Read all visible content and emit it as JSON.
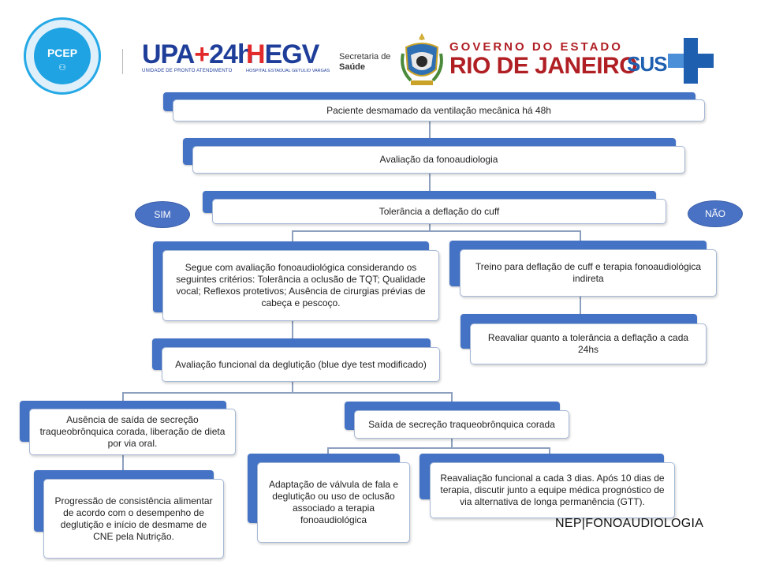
{
  "header": {
    "pcep_logo_text": "PCEP",
    "upa_logo": {
      "text_main": "UPA",
      "text_plus": "+",
      "text_num": "24h",
      "subtitle": "UNIDADE DE PRONTO ATENDIMENTO"
    },
    "hegv_logo": {
      "text_h": "H",
      "text_rest": "EGV",
      "subtitle": "HOSPITAL ESTADUAL GETULIO VARGAS"
    },
    "secretaria": {
      "line1": "Secretaria de",
      "line2": "Saúde"
    },
    "governo": {
      "line1": "GOVERNO DO ESTADO",
      "line2": "RIO DE JANEIRO"
    },
    "sus_logo_text": "SUS"
  },
  "flow": {
    "step1": "Paciente desmamado da ventilação mecânica há 48h",
    "step2": "Avaliação da fonoaudiologia",
    "step3": "Tolerância a deflação do cuff",
    "yes_label": "SIM",
    "no_label": "NÃO",
    "yes_branch": "Segue com avaliação fonoaudiológica considerando os seguintes critérios: Tolerância a oclusão de TQT; Qualidade vocal; Reflexos protetivos; Ausência de cirurgias prévias de cabeça e pescoço.",
    "no_branch_1": "Treino para deflação de cuff e terapia fonoaudiológica indireta",
    "no_branch_2": "Reavaliar quanto a tolerância a deflação a cada 24hs",
    "swallow_eval": "Avaliação funcional da deglutição (blue dye test modificado)",
    "no_secretion": "Ausência de saída de secreção traqueobrônquica corada, liberação de dieta por via oral.",
    "progression": "Progressão de consistência alimentar de acordo com o desempenho de deglutição e início de desmame de CNE pela Nutrição.",
    "secretion": "Saída de secreção traqueobrônquica corada",
    "valve": "Adaptação de válvula de fala e deglutição ou uso de oclusão associado a terapia fonoaudiológica",
    "reassess": "Reavaliação funcional a cada 3 dias. Após 10 dias de terapia, discutir junto a equipe médica prognóstico de via alternativa de longa permanência (GTT)."
  },
  "footer_label": "NEP|FONOAUDIOLOGIA",
  "colors": {
    "box_accent": "#4473c5",
    "connector": "#8da0bf",
    "gov_red": "#b01f24",
    "brand_blue": "#1f3e9a"
  }
}
